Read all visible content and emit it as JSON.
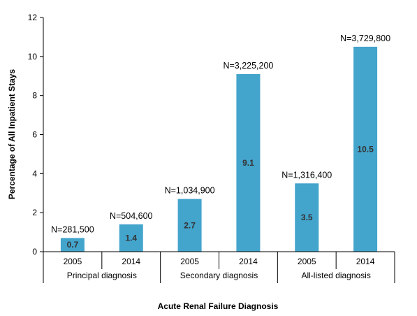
{
  "chart_data": {
    "type": "bar",
    "xlabel": "Acute Renal Failure Diagnosis",
    "ylabel": "Percentage of All Inpatient Stays",
    "ylim": [
      0,
      12
    ],
    "yticks": [
      0,
      2,
      4,
      6,
      8,
      10,
      12
    ],
    "grid": false,
    "colors": {
      "bar": "#43a4cc",
      "axis": "#000000"
    },
    "groups": [
      {
        "label": "Principal diagnosis",
        "bars": [
          {
            "year": "2005",
            "value": 0.7,
            "value_label": "0.7",
            "n_label": "N=281,500"
          },
          {
            "year": "2014",
            "value": 1.4,
            "value_label": "1.4",
            "n_label": "N=504,600"
          }
        ]
      },
      {
        "label": "Secondary diagnosis",
        "bars": [
          {
            "year": "2005",
            "value": 2.7,
            "value_label": "2.7",
            "n_label": "N=1,034,900"
          },
          {
            "year": "2014",
            "value": 9.1,
            "value_label": "9.1",
            "n_label": "N=3,225,200"
          }
        ]
      },
      {
        "label": "All-listed diagnosis",
        "bars": [
          {
            "year": "2005",
            "value": 3.5,
            "value_label": "3.5",
            "n_label": "N=1,316,400"
          },
          {
            "year": "2014",
            "value": 10.5,
            "value_label": "10.5",
            "n_label": "N=3,729,800"
          }
        ]
      }
    ]
  }
}
